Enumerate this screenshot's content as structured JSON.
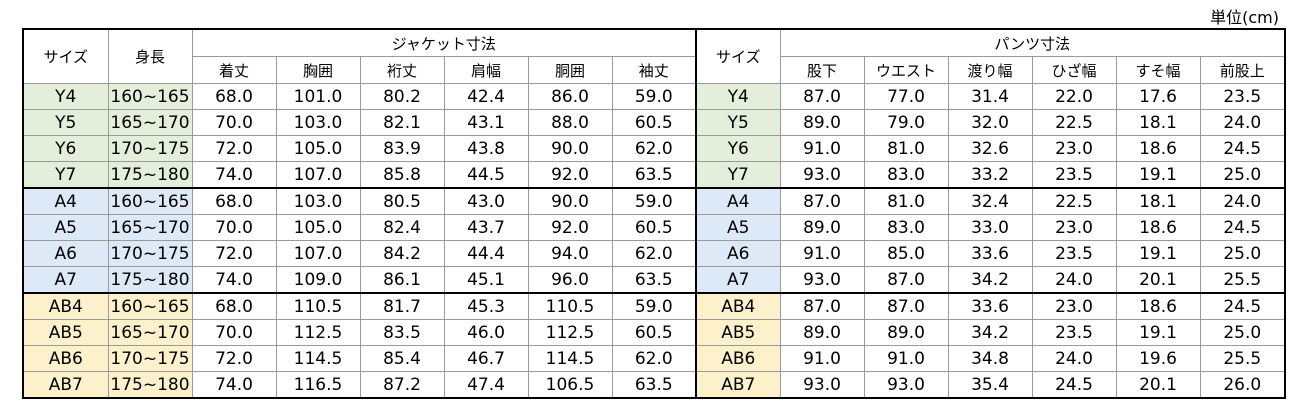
{
  "unit_label": "単位(cm)",
  "headers": {
    "size": "サイズ",
    "height": "身長",
    "jacket_group": "ジャケット寸法",
    "pants_group": "パンツ寸法",
    "jacket_cols": [
      "着丈",
      "胸囲",
      "裄丈",
      "肩幅",
      "胴囲",
      "袖丈"
    ],
    "pants_size": "サイズ",
    "pants_cols": [
      "股下",
      "ウエスト",
      "渡り幅",
      "ひざ幅",
      "すそ幅",
      "前股上"
    ]
  },
  "rows": [
    {
      "group": "Y",
      "size": "Y4",
      "height": "160~165",
      "jacket": [
        "68.0",
        "101.0",
        "80.2",
        "42.4",
        "86.0",
        "59.0"
      ],
      "pants": [
        "87.0",
        "77.0",
        "31.4",
        "22.0",
        "17.6",
        "23.5"
      ]
    },
    {
      "group": "Y",
      "size": "Y5",
      "height": "165~170",
      "jacket": [
        "70.0",
        "103.0",
        "82.1",
        "43.1",
        "88.0",
        "60.5"
      ],
      "pants": [
        "89.0",
        "79.0",
        "32.0",
        "22.5",
        "18.1",
        "24.0"
      ]
    },
    {
      "group": "Y",
      "size": "Y6",
      "height": "170~175",
      "jacket": [
        "72.0",
        "105.0",
        "83.9",
        "43.8",
        "90.0",
        "62.0"
      ],
      "pants": [
        "91.0",
        "81.0",
        "32.6",
        "23.0",
        "18.6",
        "24.5"
      ]
    },
    {
      "group": "Y",
      "size": "Y7",
      "height": "175~180",
      "jacket": [
        "74.0",
        "107.0",
        "85.8",
        "44.5",
        "92.0",
        "63.5"
      ],
      "pants": [
        "93.0",
        "83.0",
        "33.2",
        "23.5",
        "19.1",
        "25.0"
      ]
    },
    {
      "group": "A",
      "size": "A4",
      "height": "160~165",
      "jacket": [
        "68.0",
        "103.0",
        "80.5",
        "43.0",
        "90.0",
        "59.0"
      ],
      "pants": [
        "87.0",
        "81.0",
        "32.4",
        "22.5",
        "18.1",
        "24.0"
      ]
    },
    {
      "group": "A",
      "size": "A5",
      "height": "165~170",
      "jacket": [
        "70.0",
        "105.0",
        "82.4",
        "43.7",
        "92.0",
        "60.5"
      ],
      "pants": [
        "89.0",
        "83.0",
        "33.0",
        "23.0",
        "18.6",
        "24.5"
      ]
    },
    {
      "group": "A",
      "size": "A6",
      "height": "170~175",
      "jacket": [
        "72.0",
        "107.0",
        "84.2",
        "44.4",
        "94.0",
        "62.0"
      ],
      "pants": [
        "91.0",
        "85.0",
        "33.6",
        "23.5",
        "19.1",
        "25.0"
      ]
    },
    {
      "group": "A",
      "size": "A7",
      "height": "175~180",
      "jacket": [
        "74.0",
        "109.0",
        "86.1",
        "45.1",
        "96.0",
        "63.5"
      ],
      "pants": [
        "93.0",
        "87.0",
        "34.2",
        "24.0",
        "20.1",
        "25.5"
      ]
    },
    {
      "group": "AB",
      "size": "AB4",
      "height": "160~165",
      "jacket": [
        "68.0",
        "110.5",
        "81.7",
        "45.3",
        "110.5",
        "59.0"
      ],
      "pants": [
        "87.0",
        "87.0",
        "33.6",
        "23.0",
        "18.6",
        "24.5"
      ]
    },
    {
      "group": "AB",
      "size": "AB5",
      "height": "165~170",
      "jacket": [
        "70.0",
        "112.5",
        "83.5",
        "46.0",
        "112.5",
        "60.5"
      ],
      "pants": [
        "89.0",
        "89.0",
        "34.2",
        "23.5",
        "19.1",
        "25.0"
      ]
    },
    {
      "group": "AB",
      "size": "AB6",
      "height": "170~175",
      "jacket": [
        "72.0",
        "114.5",
        "85.4",
        "46.7",
        "114.5",
        "62.0"
      ],
      "pants": [
        "91.0",
        "91.0",
        "34.8",
        "24.0",
        "19.6",
        "25.5"
      ]
    },
    {
      "group": "AB",
      "size": "AB7",
      "height": "175~180",
      "jacket": [
        "74.0",
        "116.5",
        "87.2",
        "47.4",
        "106.5",
        "63.5"
      ],
      "pants": [
        "93.0",
        "93.0",
        "35.4",
        "24.5",
        "20.1",
        "26.0"
      ]
    }
  ],
  "colors": {
    "Y": "#e3efda",
    "A": "#dde9f6",
    "AB": "#fdf1cc"
  }
}
